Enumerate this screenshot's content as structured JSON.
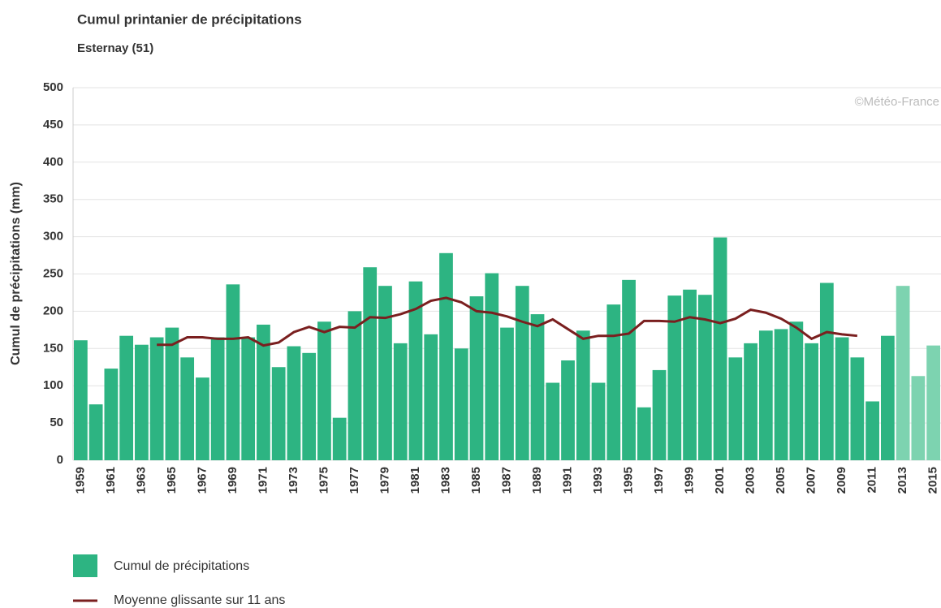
{
  "chart_data": {
    "type": "bar",
    "title": "Cumul printanier de précipitations",
    "subtitle": "Esternay (51)",
    "y_label": "Cumul de précipitations (mm)",
    "annotation": "©Météo-France",
    "categories": [
      "1959",
      null,
      "1961",
      null,
      "1963",
      null,
      "1965",
      null,
      "1967",
      null,
      "1969",
      null,
      "1971",
      null,
      "1973",
      null,
      "1975",
      null,
      "1977",
      null,
      "1979",
      null,
      "1981",
      null,
      "1983",
      null,
      "1985",
      null,
      "1987",
      null,
      "1989",
      null,
      "1991",
      null,
      "1993",
      null,
      "1995",
      null,
      "1997",
      null,
      "1999",
      null,
      "2001",
      null,
      "2003",
      null,
      "2005",
      null,
      "2007",
      null,
      "2009",
      null,
      "2011",
      null,
      "2013",
      null,
      "2015"
    ],
    "series": [
      {
        "name": "Cumul de précipitations",
        "type": "bar",
        "color": "#2db482",
        "colors": [
          "#2db482",
          "#2db482",
          "#2db482",
          "#2db482",
          "#2db482",
          "#2db482",
          "#2db482",
          "#2db482",
          "#2db482",
          "#2db482",
          "#2db482",
          "#2db482",
          "#2db482",
          "#2db482",
          "#2db482",
          "#2db482",
          "#2db482",
          "#2db482",
          "#2db482",
          "#2db482",
          "#2db482",
          "#2db482",
          "#2db482",
          "#2db482",
          "#2db482",
          "#2db482",
          "#2db482",
          "#2db482",
          "#2db482",
          "#2db482",
          "#2db482",
          "#2db482",
          "#2db482",
          "#2db482",
          "#2db482",
          "#2db482",
          "#2db482",
          "#2db482",
          "#2db482",
          "#2db482",
          "#2db482",
          "#2db482",
          "#2db482",
          "#2db482",
          "#2db482",
          "#2db482",
          "#2db482",
          "#2db482",
          "#2db482",
          "#2db482",
          "#2db482",
          "#2db482",
          "#2db482",
          "#2db482",
          "#7dd3b0",
          "#7dd3b0",
          "#7dd3b0"
        ],
        "values": [
          161,
          75,
          123,
          167,
          155,
          165,
          178,
          138,
          111,
          165,
          236,
          165,
          182,
          125,
          153,
          144,
          186,
          57,
          200,
          259,
          234,
          157,
          240,
          169,
          278,
          150,
          220,
          251,
          178,
          234,
          196,
          104,
          134,
          174,
          104,
          209,
          242,
          71,
          121,
          221,
          229,
          222,
          299,
          138,
          157,
          174,
          176,
          186,
          157,
          238,
          165,
          138,
          79,
          167,
          234,
          113,
          154
        ]
      },
      {
        "name": "Moyenne glissante sur 11 ans",
        "type": "line",
        "color": "#7a1f1f",
        "values": [
          null,
          null,
          null,
          null,
          null,
          155,
          155,
          165,
          165,
          163,
          163,
          165,
          154,
          158,
          172,
          179,
          172,
          179,
          178,
          192,
          191,
          196,
          203,
          214,
          218,
          212,
          200,
          198,
          193,
          186,
          180,
          189,
          176,
          163,
          167,
          167,
          170,
          187,
          187,
          186,
          192,
          189,
          184,
          190,
          202,
          198,
          190,
          178,
          163,
          172,
          169,
          167,
          null,
          null,
          null,
          null,
          null
        ]
      }
    ],
    "ylim": [
      0,
      500
    ],
    "yticks": [
      0,
      50,
      100,
      150,
      200,
      250,
      300,
      350,
      400,
      450,
      500
    ],
    "grid": true
  }
}
